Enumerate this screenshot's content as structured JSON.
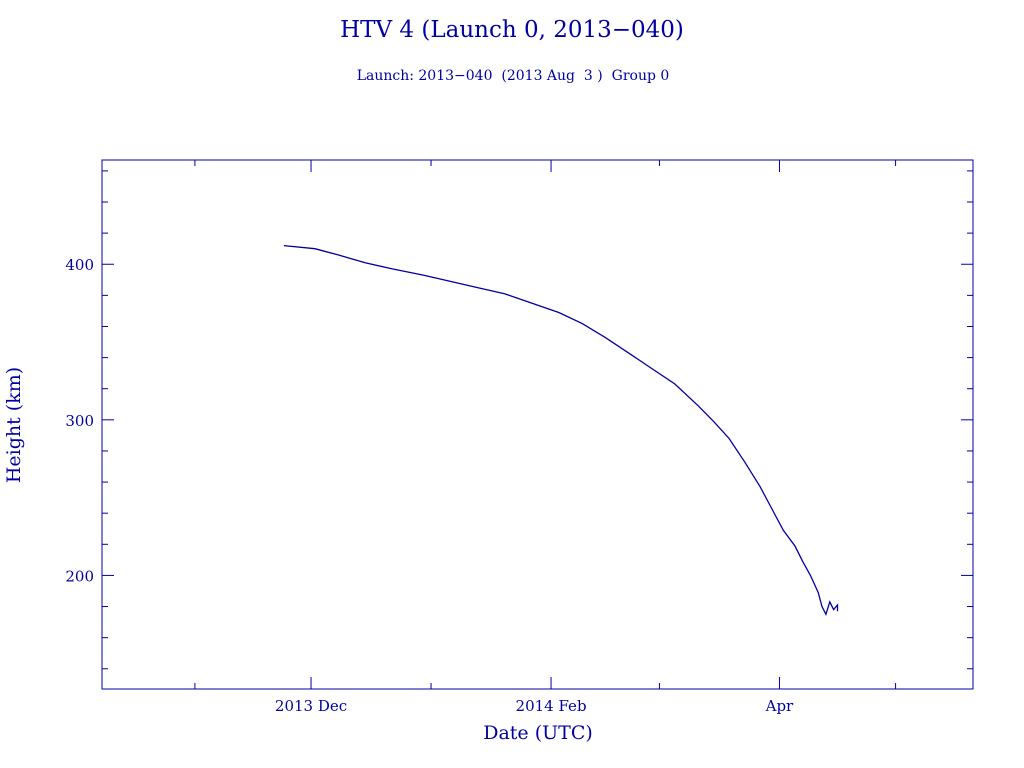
{
  "chart_data": {
    "type": "line",
    "title": "HTV 4 (Launch 0, 2013−040)",
    "subtitle": "Launch: 2013−040  (2013 Aug  3 )  Group 0",
    "xlabel": "Date (UTC)",
    "ylabel": "Height (km)",
    "x_scale": "date",
    "xlim": [
      "2013-10-08",
      "2014-05-21"
    ],
    "ylim": [
      127,
      467
    ],
    "x_tick_labels": [
      {
        "date": "2013-12-01",
        "label": "2013 Dec"
      },
      {
        "date": "2014-02-01",
        "label": "2014 Feb"
      },
      {
        "date": "2014-04-01",
        "label": "Apr"
      }
    ],
    "x_minor_ticks": [
      "2013-11-01",
      "2014-01-01",
      "2014-03-01",
      "2014-05-01"
    ],
    "y_ticks": [
      200,
      300,
      400
    ],
    "y_minor_step": 20,
    "grid": false,
    "color": "#0000a0",
    "series": [
      {
        "x": [
          "2013-11-24",
          "2013-12-02",
          "2013-12-08",
          "2013-12-15",
          "2013-12-22",
          "2013-12-30",
          "2014-01-06",
          "2014-01-13",
          "2014-01-20",
          "2014-01-27",
          "2014-02-03",
          "2014-02-09",
          "2014-02-15",
          "2014-02-21",
          "2014-02-27",
          "2014-03-05",
          "2014-03-11",
          "2014-03-15",
          "2014-03-19",
          "2014-03-23",
          "2014-03-27",
          "2014-03-30",
          "2014-04-02",
          "2014-04-05",
          "2014-04-07",
          "2014-04-09",
          "2014-04-11",
          "2014-04-12",
          "2014-04-13",
          "2014-04-14",
          "2014-04-15",
          "2014-04-16",
          "2014-04-16"
        ],
        "y": [
          412,
          410,
          406,
          401,
          397,
          393,
          389,
          385,
          381,
          375,
          369,
          362,
          353,
          343,
          333,
          323,
          309,
          299,
          288,
          273,
          257,
          243,
          229,
          219,
          209,
          200,
          189,
          180,
          175,
          183,
          178,
          181,
          177
        ]
      }
    ]
  }
}
